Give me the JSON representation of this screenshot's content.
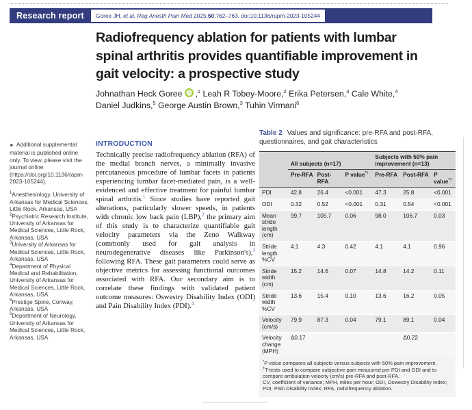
{
  "page": {
    "kicker": "Research report",
    "citation": {
      "part1": "Goree JH, ",
      "part2_italic": "et al. Reg Anesth Pain Med",
      "part3": " 2025;",
      "part4_bold": "50",
      "part5": ":762–763. doi:10.1136/rapm-2023-105244"
    },
    "title": "Radiofrequency ablation for patients with lumbar\nspinal arthritis provides quantifiable improvement in\ngait velocity: a prospective study"
  },
  "authors": {
    "list": [
      {
        "name": "Johnathan Heck Goree",
        "sep": ",",
        "sup": "1"
      },
      {
        "name": " Leah R Tobey-Moore,",
        "sup": "2"
      },
      {
        "name": " Erika Petersen,",
        "sup": "3"
      },
      {
        "name": " Cale White,",
        "sup": "4"
      },
      {
        "name": "Daniel Judkins,",
        "sup": "5"
      },
      {
        "name": " George Austin Brown,",
        "sup": "3"
      },
      {
        "name": " Tuhin Virmani",
        "sup": "6"
      }
    ]
  },
  "sidebar": {
    "pointer": "►",
    "supplemental_note": "Additional supplemental material is published online only. To view, please visit the journal online (https://doi.org/10.1136/rapm-2023-105244).",
    "affiliations": [
      {
        "n": "1",
        "text": "Anesthesiology, University of Arkansas for Medical Sciences, Little Rock, Arkansas, USA"
      },
      {
        "n": "2",
        "text": "Psychiatric Research Institute, University of Arkansas for Medical Sciences, Little Rock, Arkansas, USA"
      },
      {
        "n": "3",
        "text": "University of Arkansas for Medical Sciences, Little Rock, Arkansas, USA"
      },
      {
        "n": "4",
        "text": "Department of Physical Medical and Rehabilitation, University of Arkansas for Medical Sciences, Little Rock, Arkansas, USA"
      },
      {
        "n": "5",
        "text": "Prestige Spine, Conway, Arkansas, USA"
      },
      {
        "n": "6",
        "text": "Department of Neurology, University of Arkansas for Medical Sciences, Little Rock, Arkansas, USA"
      }
    ]
  },
  "intro": {
    "heading": "INTRODUCTION",
    "seg1": "Technically precise radiofrequency ablation (RFA) of the medial branch nerves, a minimally invasive percutaneous procedure of lumbar facets in patients experiencing lumbar facet-mediated pain, is a well-evidenced and effective treatment for painful lumbar spinal arthritis.",
    "ref1": "1",
    "seg2": " Since studies have reported gait alterations, particularly slower speeds, in patients with chronic low back pain (LBP),",
    "ref2": "2",
    "seg3": " the primary aim of this study is to characterize quantifiable gait velocity parameters via the Zeno Walkway (commonly used for gait analysis in neurodegenerative diseases like Parkinson's),",
    "ref3": "3",
    "seg4": " following RFA. These gait parameters could serve as objective metrics for assessing functional outcomes associated with RFA. Our secondary aim is to correlate these findings with validated patient outcome measures: Oswestry Disability Index (ODI) and Pain Disability Index (PDI).",
    "ref4": "4"
  },
  "table": {
    "caption_label": "Table 2",
    "caption_text": "Values and significance: pre-RFA and post-RFA,\nquestionnaires, and gait characteristics",
    "group1": "All subjects (n=17)",
    "group2": "Subjects with 50% pain improvement (n=13)",
    "subheaders": [
      "Pre-RFA",
      "Post-RFA",
      "P value"
    ],
    "p_sup": "*†",
    "rows": [
      {
        "label": "PDI",
        "v": [
          "42.8",
          "26.4",
          "<0.001",
          "47.3",
          "25.8",
          "<0.001"
        ]
      },
      {
        "label": "ODI",
        "v": [
          "0.32",
          "0.52",
          "<0.001",
          "0.31",
          "0.54",
          "<0.001"
        ]
      },
      {
        "label": "Mean stride length (cm)",
        "v": [
          "99.7",
          "105.7",
          "0.06",
          "98.0",
          "106.7",
          "0.03"
        ]
      },
      {
        "label": "Stride length %CV",
        "v": [
          "4.1",
          "4.3",
          "0.42",
          "4.1",
          "4.1",
          "0.96"
        ]
      },
      {
        "label": "Stride width (cm)",
        "v": [
          "15.2",
          "14.6",
          "0.07",
          "14.8",
          "14.2",
          "0.11"
        ]
      },
      {
        "label": "Stride width %CV",
        "v": [
          "13.6",
          "15.4",
          "0.10",
          "13.6",
          "16.2",
          "0.05"
        ]
      },
      {
        "label": "Velocity (cm/s)",
        "v": [
          "79.9",
          "87.3",
          "0.04",
          "79.1",
          "89.1",
          "0.04"
        ]
      },
      {
        "label": "Velocity change (MPH)",
        "v": [
          "Δ0.17",
          "",
          "",
          "",
          "Δ0.22",
          ""
        ]
      }
    ],
    "footnotes": [
      {
        "mark": "*",
        "text": "P value compares all subjects versus subjects with 50% pain improvement."
      },
      {
        "mark": "†",
        "text": "T-tests used to compare subjective pain measured per PDI and ODI and to compare ambulation velocity (cm/s) pre-RFA and post-RFA."
      },
      {
        "mark": "",
        "text": "CV, coefficient of variance; MPH, miles per hour; ODI, Oswestry Disability Index; PDI, Pain Disability Index; RFA, radiofrequency ablation."
      }
    ]
  },
  "colors": {
    "banner_navy": "#323c7e",
    "heading_blue": "#3e5caa",
    "table_label_navy": "#3f4d8c",
    "orcid_green": "#a6ce39"
  }
}
